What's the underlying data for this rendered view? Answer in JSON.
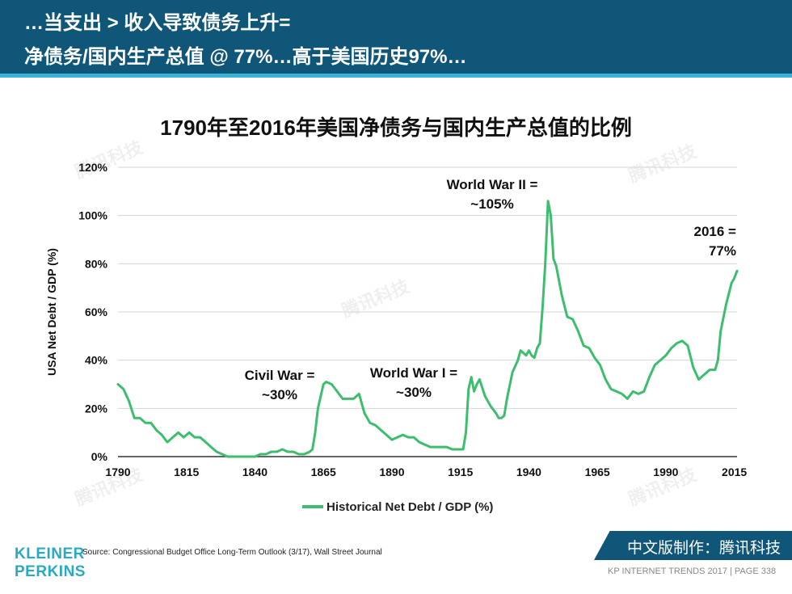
{
  "header": {
    "line1": "…当支出 > 收入导致债务上升=",
    "line2": "净债务/国内生产总值 @ 77%…高于美国历史97%…"
  },
  "chart_data": {
    "type": "line",
    "title": "1790年至2016年美国净债务与国内生产总值的比例",
    "ylabel": "USA Net Debt / GDP (%)",
    "xlabel": "",
    "xlim": [
      1790,
      2016
    ],
    "ylim": [
      0,
      120
    ],
    "x_ticks": [
      "1790",
      "1815",
      "1840",
      "1865",
      "1890",
      "1915",
      "1940",
      "1965",
      "1990",
      "2015"
    ],
    "y_ticks": [
      "0%",
      "20%",
      "40%",
      "60%",
      "80%",
      "100%",
      "120%"
    ],
    "grid": true,
    "legend": "Historical Net Debt / GDP (%)",
    "series": [
      {
        "name": "Historical Net Debt / GDP (%)",
        "color": "#3dbd6e",
        "x": [
          1790,
          1792,
          1794,
          1796,
          1798,
          1800,
          1802,
          1804,
          1806,
          1808,
          1810,
          1812,
          1814,
          1816,
          1818,
          1820,
          1822,
          1824,
          1826,
          1828,
          1830,
          1832,
          1834,
          1836,
          1838,
          1840,
          1842,
          1844,
          1846,
          1848,
          1850,
          1852,
          1854,
          1856,
          1858,
          1860,
          1861,
          1862,
          1863,
          1864,
          1865,
          1866,
          1868,
          1870,
          1872,
          1874,
          1876,
          1878,
          1880,
          1882,
          1884,
          1886,
          1888,
          1890,
          1892,
          1894,
          1896,
          1898,
          1900,
          1902,
          1904,
          1906,
          1908,
          1910,
          1912,
          1914,
          1916,
          1917,
          1918,
          1919,
          1920,
          1921,
          1922,
          1924,
          1926,
          1928,
          1929,
          1930,
          1931,
          1932,
          1934,
          1936,
          1937,
          1938,
          1939,
          1940,
          1941,
          1942,
          1943,
          1944,
          1945,
          1946,
          1947,
          1948,
          1949,
          1950,
          1952,
          1954,
          1956,
          1958,
          1960,
          1962,
          1964,
          1966,
          1968,
          1970,
          1972,
          1974,
          1975,
          1976,
          1978,
          1980,
          1982,
          1984,
          1986,
          1988,
          1990,
          1992,
          1994,
          1996,
          1998,
          2000,
          2002,
          2004,
          2006,
          2008,
          2009,
          2010,
          2012,
          2014,
          2015,
          2016
        ],
        "values": [
          30,
          28,
          23,
          16,
          16,
          14,
          14,
          11,
          9,
          6,
          8,
          10,
          8,
          10,
          8,
          8,
          6,
          4,
          2,
          1,
          0,
          0,
          0,
          0,
          0,
          0,
          1,
          1,
          2,
          2,
          3,
          2,
          2,
          1,
          1,
          2,
          3,
          10,
          20,
          25,
          30,
          31,
          30,
          27,
          24,
          24,
          24,
          26,
          18,
          14,
          13,
          11,
          9,
          7,
          8,
          9,
          8,
          8,
          6,
          5,
          4,
          4,
          4,
          4,
          3,
          3,
          3,
          10,
          28,
          33,
          27,
          30,
          32,
          25,
          21,
          18,
          16,
          16,
          17,
          24,
          35,
          40,
          44,
          43,
          42,
          44,
          42,
          41,
          45,
          47,
          62,
          80,
          106,
          100,
          82,
          79,
          67,
          58,
          57,
          52,
          46,
          45,
          41,
          38,
          32,
          28,
          27,
          26,
          25,
          24,
          27,
          26,
          27,
          33,
          38,
          40,
          42,
          45,
          47,
          48,
          46,
          37,
          32,
          34,
          36,
          36,
          40,
          52,
          63,
          72,
          74,
          77
        ]
      }
    ],
    "annotations": [
      {
        "year": 1865,
        "text_line1": "Civil War =",
        "text_line2": "~30%"
      },
      {
        "year": 1917,
        "text_line1": "World War I =",
        "text_line2": "~30%"
      },
      {
        "year": 1946,
        "text_line1": "World War II =",
        "text_line2": "~105%"
      },
      {
        "year": 2016,
        "text_line1": "2016 =",
        "text_line2": "77%"
      }
    ]
  },
  "footer": {
    "source": "Source: Congressional Budget Office Long-Term Outlook (3/17), Wall Street Journal",
    "logo_line1": "KLEINER",
    "logo_line2": "PERKINS",
    "badge": "中文版制作：腾讯科技",
    "page_info": "KP INTERNET TRENDS 2017  |  PAGE 338"
  },
  "watermark": "腾讯科技",
  "colors": {
    "header_bg": "#0f5679",
    "stripe": "#39b2d8",
    "line": "#3dbd6e",
    "logo": "#2aa8c7"
  }
}
